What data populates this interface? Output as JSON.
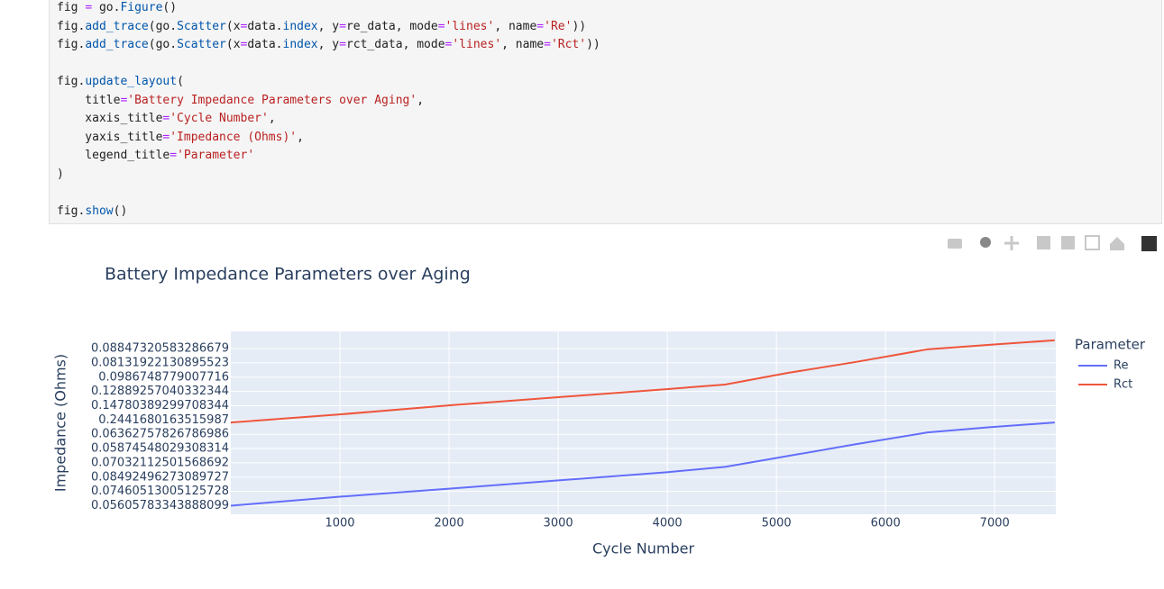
{
  "code": {
    "blocks": [
      [
        "fig = go.Figure()",
        "fig.add_trace(go.Scatter(x=data.index, y=re_data, mode='lines', name='Re'))",
        "fig.add_trace(go.Scatter(x=data.index, y=rct_data, mode='lines', name='Rct'))"
      ],
      [
        "fig.update_layout(",
        "    title='Battery Impedance Parameters over Aging',",
        "    xaxis_title='Cycle Number',",
        "    yaxis_title='Impedance (Ohms)',",
        "    legend_title='Parameter'",
        ")"
      ],
      [
        "fig.show()"
      ]
    ]
  },
  "chart_data": {
    "type": "line",
    "title": "Battery Impedance Parameters over Aging",
    "x_label": "Cycle Number",
    "y_label": "Impedance (Ohms)",
    "legend_title": "Parameter",
    "xlim": [
      0,
      7560
    ],
    "xticks": [
      1000,
      2000,
      3000,
      4000,
      5000,
      6000,
      7000
    ],
    "ylim": [
      -0.6,
      12.2
    ],
    "yticks": [
      {
        "value": 0,
        "label": "0.05605783343888099"
      },
      {
        "value": 1,
        "label": "0.07460513005125728"
      },
      {
        "value": 2,
        "label": "0.08492496273089727"
      },
      {
        "value": 3,
        "label": "0.07032112501568692"
      },
      {
        "value": 4,
        "label": "0.05874548029308314"
      },
      {
        "value": 5,
        "label": "0.06362757826786986"
      },
      {
        "value": 6,
        "label": "0.2441680163515987"
      },
      {
        "value": 7,
        "label": "0.14780389299708344"
      },
      {
        "value": 8,
        "label": "0.12889257040332344"
      },
      {
        "value": 9,
        "label": "0.0986748779007716"
      },
      {
        "value": 10,
        "label": "0.08131922130895523"
      },
      {
        "value": 11,
        "label": "0.08847320583286679"
      }
    ],
    "grid": true,
    "x": [
      0,
      1000,
      2013,
      3993,
      4530,
      5107,
      5726,
      6386,
      6964,
      7550
    ],
    "series": [
      {
        "name": "Re",
        "color": "#636efa",
        "values": [
          0,
          0.63,
          1.2,
          2.34,
          2.72,
          3.48,
          4.3,
          5.13,
          5.5,
          5.82
        ]
      },
      {
        "name": "Rct",
        "color": "#ef553b",
        "values": [
          5.82,
          6.39,
          7.03,
          8.16,
          8.48,
          9.3,
          10.06,
          10.95,
          11.27,
          11.58
        ]
      }
    ]
  }
}
